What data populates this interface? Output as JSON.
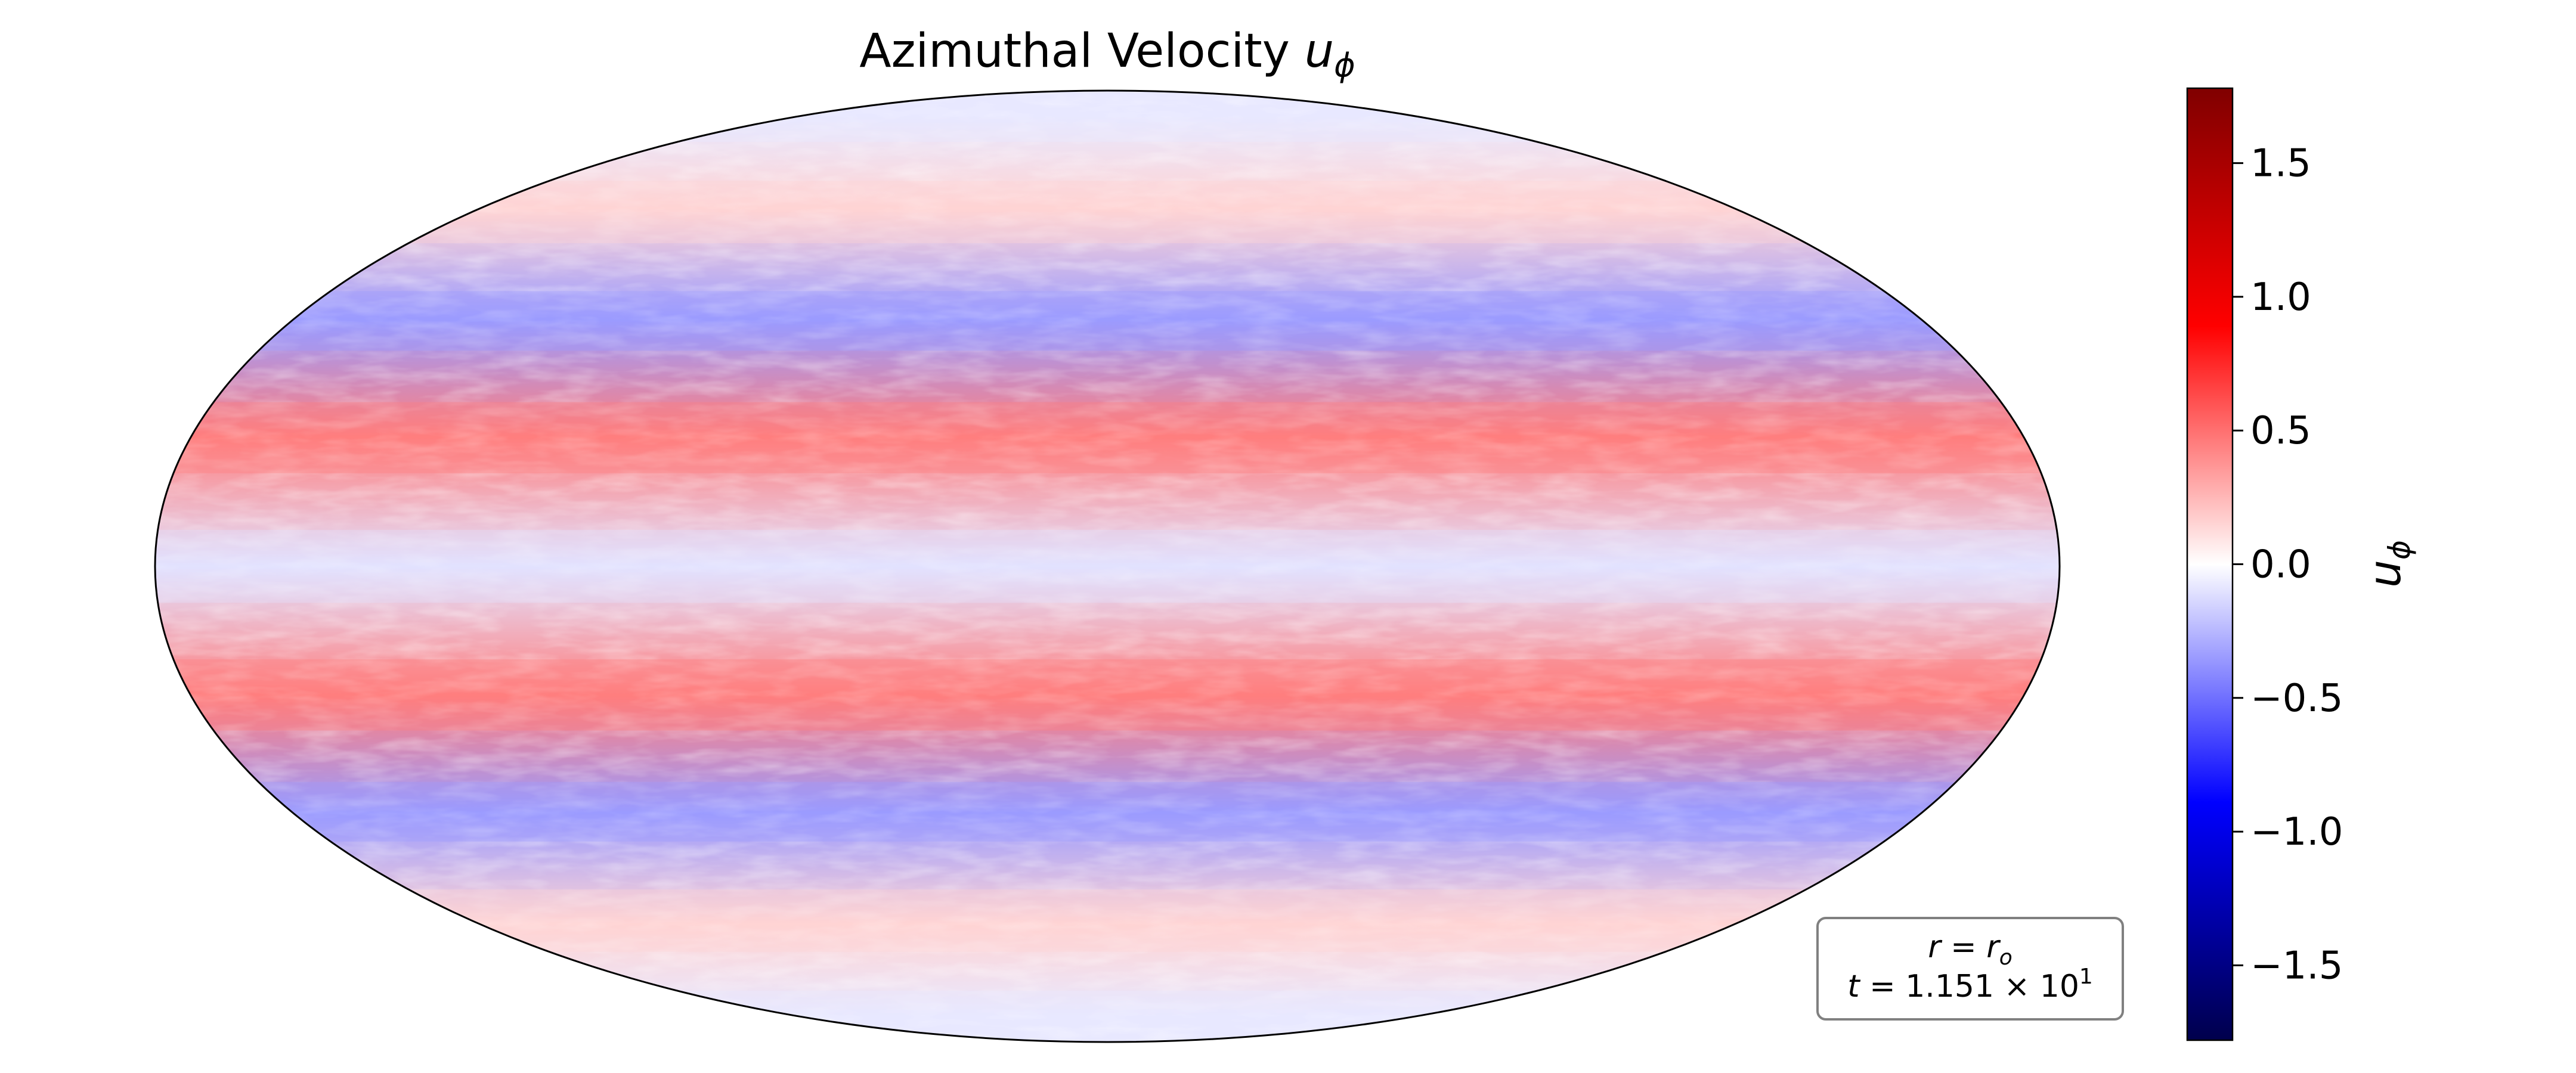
{
  "chart_data": {
    "type": "heatmap",
    "projection": "mollweide",
    "title_text": "Azimuthal Velocity ",
    "title_symbol": "u",
    "title_subscript": "ϕ",
    "colorbar": {
      "label_symbol": "u",
      "label_subscript": "ϕ",
      "range": [
        -1.78,
        1.78
      ],
      "ticks": [
        1.5,
        1.0,
        0.5,
        0.0,
        -0.5,
        -1.0,
        -1.5
      ],
      "tick_labels": [
        "1.5",
        "1.0",
        "0.5",
        "0.0",
        "−0.5",
        "−1.0",
        "−1.5"
      ],
      "colormap": "seismic",
      "color_low": "#00004c",
      "color_mid": "#ffffff",
      "color_high": "#800000"
    },
    "zonal_bands": [
      {
        "latitude_range_deg": [
          70,
          90
        ],
        "approx_value": -0.08
      },
      {
        "latitude_range_deg": [
          48,
          70
        ],
        "approx_value": 0.15
      },
      {
        "latitude_range_deg": [
          30,
          48
        ],
        "approx_value": -0.35
      },
      {
        "latitude_range_deg": [
          10,
          30
        ],
        "approx_value": 0.45
      },
      {
        "latitude_range_deg": [
          -10,
          10
        ],
        "approx_value": -0.1
      },
      {
        "latitude_range_deg": [
          -30,
          -10
        ],
        "approx_value": 0.45
      },
      {
        "latitude_range_deg": [
          -48,
          -30
        ],
        "approx_value": -0.35
      },
      {
        "latitude_range_deg": [
          -70,
          -48
        ],
        "approx_value": 0.15
      },
      {
        "latitude_range_deg": [
          -90,
          -70
        ],
        "approx_value": -0.08
      }
    ],
    "annotation": {
      "line1_lhs": "r",
      "line1_rhs": "r",
      "line1_rhs_sub": "o",
      "line2_lhs": "t",
      "line2_mantissa": "1.151",
      "line2_base": "10",
      "line2_exp": "1"
    }
  }
}
